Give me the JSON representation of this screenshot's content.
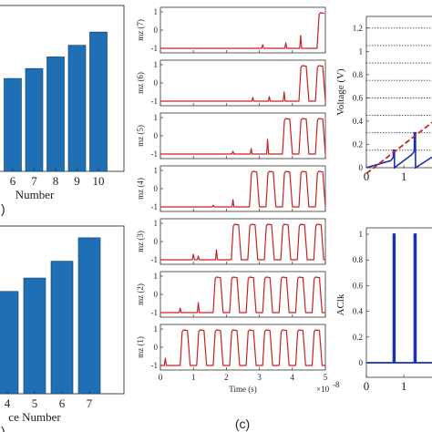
{
  "chart_data": [
    {
      "id": "a",
      "type": "bar",
      "panel_label": ")",
      "xlabel": "Number",
      "ylabel": "",
      "categories": [
        "6",
        "7",
        "8",
        "9",
        "10"
      ],
      "values": [
        5.6,
        6.2,
        6.9,
        7.6,
        8.4
      ],
      "ylim": [
        0,
        10
      ],
      "color": "#1f6fb5",
      "grid": false
    },
    {
      "id": "b",
      "type": "bar",
      "panel_label": ")",
      "xlabel": "ce Number",
      "ylabel": "",
      "categories": [
        "4",
        "5",
        "6",
        "7"
      ],
      "values": [
        6.1,
        6.9,
        7.9,
        9.3
      ],
      "ylim": [
        0,
        10
      ],
      "color": "#1f6fb5",
      "grid": false
    },
    {
      "id": "c",
      "type": "line",
      "panel_label": "(c)",
      "xlabel": "Time (s)",
      "x_multiplier": "×10",
      "x_multiplier_exp": "-8",
      "x_ticks": [
        "0",
        "1",
        "2",
        "3",
        "4",
        "5"
      ],
      "xlim": [
        0,
        5
      ],
      "ylim": [
        -1,
        1
      ],
      "y_ticks": [
        "1",
        "0",
        "-1"
      ],
      "color": "#cc1f1f",
      "grid": false,
      "series": [
        {
          "name": "mz (7)",
          "switch_start": 4.75,
          "period": 0.5,
          "count": 1,
          "spikes": [
            [
              3.1,
              -0.8
            ],
            [
              3.8,
              -0.7
            ],
            [
              4.25,
              -0.3
            ]
          ]
        },
        {
          "name": "mz (6)",
          "switch_start": 4.2,
          "period": 0.5,
          "count": 2,
          "spikes": [
            [
              2.8,
              -0.8
            ],
            [
              3.3,
              -0.75
            ],
            [
              3.75,
              -0.5
            ]
          ]
        },
        {
          "name": "mz (5)",
          "switch_start": 3.7,
          "period": 0.5,
          "count": 3,
          "spikes": [
            [
              2.2,
              -0.85
            ],
            [
              2.75,
              -0.7
            ],
            [
              3.25,
              -0.2
            ]
          ]
        },
        {
          "name": "mz (4)",
          "switch_start": 2.7,
          "period": 0.5,
          "count": 5,
          "spikes": [
            [
              1.6,
              -0.9
            ],
            [
              2.2,
              -0.6
            ]
          ]
        },
        {
          "name": "mz (3)",
          "switch_start": 2.15,
          "period": 0.5,
          "count": 6,
          "spikes": [
            [
              1.0,
              -0.7
            ],
            [
              1.15,
              -0.8
            ],
            [
              1.7,
              -0.45
            ]
          ]
        },
        {
          "name": "mz (2)",
          "switch_start": 1.6,
          "period": 0.5,
          "count": 7,
          "spikes": [
            [
              0.6,
              -0.75
            ],
            [
              1.15,
              -0.45
            ]
          ]
        },
        {
          "name": "mz (1)",
          "switch_start": 0.6,
          "period": 0.5,
          "count": 9,
          "spikes": [
            [
              0.15,
              -0.6
            ]
          ]
        }
      ]
    },
    {
      "id": "d",
      "type": "line",
      "ylabel": "Voltage (V)",
      "y_ticks": [
        "1.2",
        "1",
        "0.8",
        "0.6",
        "0.4",
        "0.2",
        "0"
      ],
      "ylim": [
        0,
        1.3
      ],
      "x_ticks": [
        "0",
        "1"
      ],
      "xlim": [
        0,
        1.8
      ],
      "thresholds": [
        1.2,
        1.05,
        0.9,
        0.75,
        0.6,
        0.45,
        0.3,
        0.15
      ],
      "ramp": {
        "x": [
          0,
          1.8
        ],
        "y": [
          -0.05,
          0.4
        ]
      },
      "signal": [
        [
          0,
          0.0
        ],
        [
          0.65,
          0.06
        ],
        [
          0.72,
          0.09
        ],
        [
          0.72,
          0.15
        ],
        [
          0.75,
          0.15
        ],
        [
          0.75,
          0.0
        ],
        [
          1.2,
          0.11
        ],
        [
          1.28,
          0.14
        ],
        [
          1.28,
          0.3
        ],
        [
          1.31,
          0.3
        ],
        [
          1.31,
          0.0
        ],
        [
          1.8,
          0.1
        ]
      ],
      "ramp_color": "#cc2222",
      "signal_color": "#1b2fb5",
      "threshold_color": "#444444"
    },
    {
      "id": "e",
      "type": "line",
      "ylabel": "AClk",
      "y_ticks": [
        "1",
        "0.8",
        "0.6",
        "0.4",
        "0.2",
        "0"
      ],
      "ylim": [
        0,
        1.05
      ],
      "x_ticks": [
        "0",
        "1"
      ],
      "xlim": [
        0,
        1.8
      ],
      "pulses": [
        0.74,
        1.3
      ],
      "color": "#1b2fb5"
    }
  ]
}
